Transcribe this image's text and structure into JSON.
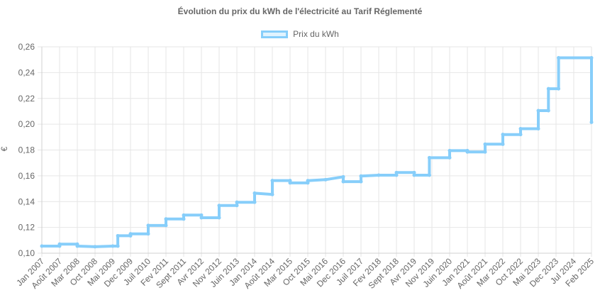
{
  "chart_data": {
    "type": "line",
    "title": "Évolution du prix du kWh de l'électricité au Tarif Réglementé",
    "ylabel": "€",
    "xlabel": "",
    "legend": {
      "position": "top",
      "entries": [
        "Prix du kWh"
      ]
    },
    "grid": true,
    "ylim": [
      0.1,
      0.26
    ],
    "y_ticks": [
      "0,10",
      "0,12",
      "0,14",
      "0,16",
      "0,18",
      "0,20",
      "0,22",
      "0,24",
      "0,26"
    ],
    "x_tick_labels": [
      "Jan 2007",
      "Août 2007",
      "Mar 2008",
      "Oct 2008",
      "Mai 2009",
      "Dec 2009",
      "Juil 2010",
      "Fev 2011",
      "Sept 2011",
      "Avr 2012",
      "Nov 2012",
      "Juin 2013",
      "Jan 2014",
      "Août 2014",
      "Mar 2015",
      "Oct 2015",
      "Mai 2016",
      "Dec 2016",
      "Juil 2017",
      "Fev 2018",
      "Sept 2018",
      "Avr 2019",
      "Nov 2019",
      "Juin 2020",
      "Jan 2021",
      "Août 2021",
      "Mar 2022",
      "Oct 2022",
      "Mai 2023",
      "Dec 2023",
      "Jul 2024",
      "Feb 2025"
    ],
    "x_range": [
      "Jan 2007",
      "Feb 2025"
    ],
    "series": [
      {
        "name": "Prix du kWh",
        "color": "#87cefa",
        "points": [
          [
            "Jan 2007",
            0.1055
          ],
          [
            "Août 2007",
            0.1055
          ],
          [
            "Août 2007",
            0.107
          ],
          [
            "Mar 2008",
            0.107
          ],
          [
            "Mar 2008",
            0.1055
          ],
          [
            "Oct 2008",
            0.105
          ],
          [
            "Mai 2009",
            0.1055
          ],
          [
            "Jul 2009",
            0.1055
          ],
          [
            "Jul 2009",
            0.1135
          ],
          [
            "Dec 2009",
            0.1135
          ],
          [
            "Dec 2009",
            0.115
          ],
          [
            "Juil 2010",
            0.115
          ],
          [
            "Juil 2010",
            0.1215
          ],
          [
            "Fev 2011",
            0.1215
          ],
          [
            "Fev 2011",
            0.1265
          ],
          [
            "Sept 2011",
            0.1265
          ],
          [
            "Sept 2011",
            0.1295
          ],
          [
            "Avr 2012",
            0.1295
          ],
          [
            "Avr 2012",
            0.1275
          ],
          [
            "Nov 2012",
            0.1275
          ],
          [
            "Nov 2012",
            0.137
          ],
          [
            "Juin 2013",
            0.137
          ],
          [
            "Juin 2013",
            0.1395
          ],
          [
            "Jan 2014",
            0.1395
          ],
          [
            "Jan 2014",
            0.1465
          ],
          [
            "Août 2014",
            0.1455
          ],
          [
            "Août 2014",
            0.1563
          ],
          [
            "Mar 2015",
            0.1563
          ],
          [
            "Mar 2015",
            0.1545
          ],
          [
            "Oct 2015",
            0.1545
          ],
          [
            "Oct 2015",
            0.1562
          ],
          [
            "Mai 2016",
            0.157
          ],
          [
            "Dec 2016",
            0.1592
          ],
          [
            "Dec 2016",
            0.1555
          ],
          [
            "Juil 2017",
            0.1555
          ],
          [
            "Juil 2017",
            0.1598
          ],
          [
            "Fev 2018",
            0.1605
          ],
          [
            "Sept 2018",
            0.1605
          ],
          [
            "Sept 2018",
            0.1625
          ],
          [
            "Avr 2019",
            0.1625
          ],
          [
            "Avr 2019",
            0.1605
          ],
          [
            "Oct 2019",
            0.1605
          ],
          [
            "Oct 2019",
            0.174
          ],
          [
            "Juin 2020",
            0.174
          ],
          [
            "Juin 2020",
            0.1795
          ],
          [
            "Jan 2021",
            0.1795
          ],
          [
            "Jan 2021",
            0.1785
          ],
          [
            "Août 2021",
            0.1785
          ],
          [
            "Août 2021",
            0.1845
          ],
          [
            "Mar 2022",
            0.1845
          ],
          [
            "Mar 2022",
            0.192
          ],
          [
            "Oct 2022",
            0.192
          ],
          [
            "Oct 2022",
            0.1965
          ],
          [
            "Mai 2023",
            0.1965
          ],
          [
            "Mai 2023",
            0.2105
          ],
          [
            "Sept 2023",
            0.2105
          ],
          [
            "Sept 2023",
            0.2275
          ],
          [
            "Jan 2024",
            0.2275
          ],
          [
            "Jan 2024",
            0.2515
          ],
          [
            "Feb 2025",
            0.2515
          ],
          [
            "Feb 2025",
            0.2015
          ]
        ]
      }
    ]
  }
}
